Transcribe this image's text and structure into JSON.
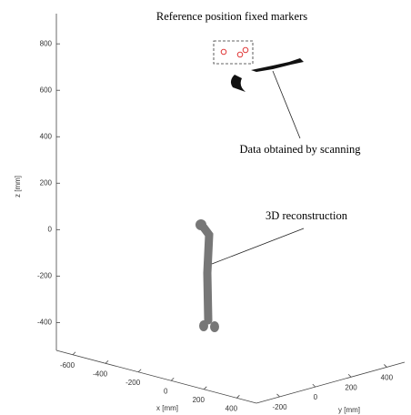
{
  "chart_data": {
    "type": "scatter3d",
    "zlabel": "z [mm]",
    "xlabel": "x [mm]",
    "ylabel": "y [mm]",
    "zlim": [
      -520,
      930
    ],
    "zticks": [
      -400,
      -200,
      0,
      200,
      400,
      600,
      800
    ],
    "xlim": [
      -700,
      520
    ],
    "xticks": [
      -600,
      -400,
      -200,
      0,
      200,
      400
    ],
    "ylim": [
      -330,
      500
    ],
    "yticks": [
      -200,
      0,
      200,
      400
    ],
    "annotations": [
      "Reference position fixed markers",
      "Data obtained by scanning",
      "3D reconstruction"
    ]
  }
}
